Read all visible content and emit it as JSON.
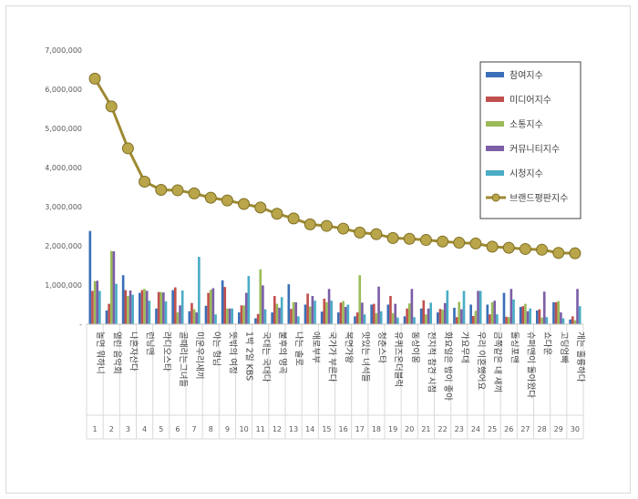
{
  "chart_data": {
    "type": "bar",
    "title": "",
    "xlabel": "",
    "ylabel": "",
    "ylim": [
      0,
      7000000
    ],
    "yticks": [
      "-",
      "1,000,000",
      "2,000,000",
      "3,000,000",
      "4,000,000",
      "5,000,000",
      "6,000,000",
      "7,000,000"
    ],
    "legend_position": "top-right",
    "grid": false,
    "categories": [
      "놀면 뭐하니",
      "열린 음악회",
      "나혼자산다",
      "런닝맨",
      "라디오스타",
      "골때리는그녀들",
      "미운우리새끼",
      "아는 형님",
      "뜻밖의 여정",
      "1박 2일 KBS",
      "국대는 국대다",
      "불후의 명곡",
      "나는 솔로",
      "애로부부",
      "국가가 부른다",
      "복면가왕",
      "맛있는 녀석들",
      "청춘스타",
      "유퀴즈온더블럭",
      "동상이몽",
      "전지적 참견 시점",
      "화요일은 밤이 좋아",
      "가요무대",
      "우리 이혼했어요",
      "금쪽같은 내 새끼",
      "돌싱포맨",
      "슈퍼맨이 돌아왔다",
      "쇼다운",
      "고딩엄빠",
      "개는 훌륭하다"
    ],
    "numbers": [
      "1",
      "2",
      "3",
      "4",
      "5",
      "6",
      "7",
      "8",
      "9",
      "10",
      "11",
      "12",
      "13",
      "14",
      "15",
      "16",
      "17",
      "18",
      "19",
      "20",
      "21",
      "22",
      "23",
      "24",
      "25",
      "26",
      "27",
      "28",
      "29",
      "30"
    ],
    "series": [
      {
        "name": "참여지수",
        "color": "#3a6fb7",
        "values": [
          2380000,
          350000,
          1250000,
          800000,
          400000,
          870000,
          330000,
          470000,
          1120000,
          300000,
          150000,
          300000,
          1020000,
          500000,
          320000,
          300000,
          200000,
          500000,
          500000,
          200000,
          400000,
          300000,
          420000,
          500000,
          500000,
          800000,
          440000,
          350000,
          560000,
          120000
        ]
      },
      {
        "name": "미디어지수",
        "color": "#c0504d",
        "values": [
          850000,
          520000,
          870000,
          870000,
          820000,
          940000,
          540000,
          800000,
          950000,
          480000,
          260000,
          720000,
          390000,
          780000,
          650000,
          550000,
          300000,
          520000,
          720000,
          400000,
          610000,
          390000,
          180000,
          210000,
          250000,
          190000,
          460000,
          380000,
          560000,
          200000
        ]
      },
      {
        "name": "소통지수",
        "color": "#9bbb59",
        "values": [
          1100000,
          1870000,
          720000,
          900000,
          820000,
          300000,
          380000,
          880000,
          400000,
          480000,
          1400000,
          520000,
          560000,
          450000,
          560000,
          590000,
          1250000,
          280000,
          280000,
          530000,
          250000,
          370000,
          570000,
          340000,
          560000,
          180000,
          520000,
          170000,
          590000,
          100000
        ]
      },
      {
        "name": "커뮤니티지수",
        "color": "#7b5ea7",
        "values": [
          1110000,
          1860000,
          860000,
          850000,
          810000,
          480000,
          300000,
          920000,
          400000,
          800000,
          990000,
          420000,
          560000,
          720000,
          900000,
          440000,
          550000,
          960000,
          520000,
          900000,
          400000,
          540000,
          380000,
          850000,
          600000,
          900000,
          330000,
          830000,
          300000,
          900000
        ]
      },
      {
        "name": "시청지수",
        "color": "#4bacc6",
        "values": [
          850000,
          1030000,
          750000,
          600000,
          580000,
          860000,
          1720000,
          250000,
          400000,
          1230000,
          380000,
          690000,
          200000,
          600000,
          600000,
          500000,
          250000,
          330000,
          170000,
          180000,
          550000,
          860000,
          850000,
          850000,
          250000,
          630000,
          400000,
          180000,
          150000,
          460000
        ]
      }
    ],
    "line": {
      "name": "브랜드평판지수",
      "color": "#9e8a33",
      "values": [
        6270000,
        5560000,
        4490000,
        3640000,
        3430000,
        3420000,
        3340000,
        3230000,
        3160000,
        3070000,
        2980000,
        2820000,
        2700000,
        2550000,
        2510000,
        2440000,
        2340000,
        2300000,
        2200000,
        2180000,
        2150000,
        2110000,
        2080000,
        2060000,
        1980000,
        1950000,
        1920000,
        1900000,
        1820000,
        1810000
      ]
    }
  }
}
